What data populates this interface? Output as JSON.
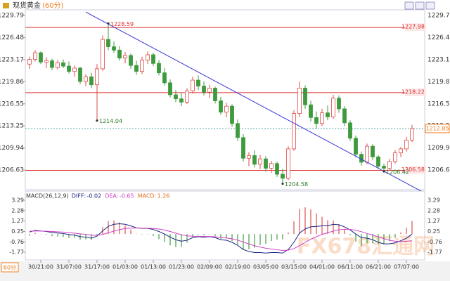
{
  "header": {
    "title": "现货黄金",
    "period": "(60分)"
  },
  "period_button": "60分",
  "watermark": "FX678汇通网",
  "chart_data": [
    {
      "type": "candlestick",
      "categories": [
        null,
        null,
        "30/21:00",
        null,
        null,
        null,
        null,
        "31/07:00",
        null,
        null,
        null,
        null,
        "31/17:00",
        null,
        null,
        null,
        null,
        "01/03:00",
        null,
        null,
        null,
        null,
        "01/13:00",
        null,
        null,
        null,
        null,
        "01/23:00",
        null,
        null,
        null,
        null,
        "02/09:00",
        null,
        null,
        null,
        null,
        "02/19:00",
        null,
        null,
        null,
        null,
        "03/05:00",
        null,
        null,
        null,
        null,
        "03/15:00",
        null,
        null,
        null,
        null,
        "04/01:00",
        null,
        null,
        null,
        null,
        "06/11:00",
        null,
        null,
        null,
        null,
        "06/21:00",
        null,
        null,
        null,
        null,
        "07/07:00",
        null
      ],
      "open": [
        1222.5,
        1223.2,
        1224.2,
        1222.8,
        1223.0,
        1222.0,
        1222.7,
        1222.2,
        1221.4,
        1221.9,
        1219.9,
        1220.6,
        1219.4,
        1221.8,
        1226.2,
        1225.1,
        1224.6,
        1223.4,
        1223.8,
        1222.3,
        1221.4,
        1223.1,
        1223.9,
        1222.6,
        1221.2,
        1219.7,
        1217.9,
        1217.3,
        1216.8,
        1218.5,
        1220.1,
        1219.2,
        1218.3,
        1218.9,
        1217.0,
        1215.3,
        1216.2,
        1213.6,
        1211.5,
        1208.4,
        1208.8,
        1207.5,
        1208.3,
        1206.9,
        1207.6,
        1206.0,
        1205.4,
        1209.8,
        1215.1,
        1218.9,
        1216.4,
        1214.5,
        1213.6,
        1215.2,
        1214.6,
        1217.4,
        1215.8,
        1213.7,
        1211.4,
        1209.0,
        1207.8,
        1210.2,
        1208.6,
        1207.2,
        1206.9,
        1207.9,
        1209.2,
        1209.8,
        1211.1
      ],
      "high": [
        1223.6,
        1224.6,
        1224.4,
        1223.5,
        1223.3,
        1223.1,
        1223.2,
        1222.9,
        1222.3,
        1222.1,
        1221.0,
        1221.2,
        1222.5,
        1226.8,
        1228.59,
        1225.9,
        1225.2,
        1224.3,
        1224.1,
        1223.0,
        1223.6,
        1224.4,
        1224.2,
        1223.1,
        1221.9,
        1220.2,
        1218.6,
        1218.2,
        1218.9,
        1220.6,
        1220.8,
        1219.9,
        1219.4,
        1219.1,
        1217.6,
        1216.7,
        1216.5,
        1214.2,
        1212.0,
        1209.3,
        1209.6,
        1208.9,
        1208.7,
        1208.0,
        1207.9,
        1206.8,
        1210.2,
        1215.6,
        1219.9,
        1219.3,
        1217.0,
        1215.4,
        1215.8,
        1216.3,
        1217.9,
        1217.8,
        1216.2,
        1214.1,
        1211.8,
        1209.4,
        1210.6,
        1210.5,
        1208.9,
        1207.6,
        1208.3,
        1209.6,
        1210.1,
        1211.6,
        1213.4
      ],
      "low": [
        1221.8,
        1222.9,
        1222.5,
        1221.9,
        1221.6,
        1221.7,
        1221.9,
        1221.1,
        1220.6,
        1219.5,
        1219.2,
        1218.9,
        1214.04,
        1221.5,
        1224.6,
        1224.2,
        1223.0,
        1222.6,
        1221.8,
        1220.9,
        1221.0,
        1222.5,
        1222.2,
        1220.8,
        1219.3,
        1217.5,
        1216.8,
        1216.2,
        1216.5,
        1218.1,
        1218.6,
        1217.8,
        1217.4,
        1216.6,
        1214.9,
        1214.5,
        1213.1,
        1211.0,
        1207.9,
        1207.2,
        1207.0,
        1206.8,
        1206.4,
        1206.2,
        1205.6,
        1204.58,
        1205.1,
        1209.5,
        1214.6,
        1215.8,
        1213.9,
        1212.8,
        1213.2,
        1214.1,
        1214.3,
        1215.2,
        1213.2,
        1211.0,
        1208.5,
        1207.3,
        1207.5,
        1208.1,
        1206.8,
        1206.42,
        1206.6,
        1207.6,
        1208.6,
        1209.4,
        1210.8
      ],
      "close": [
        1223.2,
        1224.2,
        1222.8,
        1223.0,
        1222.0,
        1222.7,
        1222.2,
        1221.4,
        1221.9,
        1219.9,
        1220.6,
        1219.4,
        1221.8,
        1226.2,
        1225.1,
        1224.6,
        1223.4,
        1223.8,
        1222.3,
        1221.4,
        1223.1,
        1223.9,
        1222.6,
        1221.2,
        1219.7,
        1217.9,
        1217.3,
        1216.8,
        1218.5,
        1220.1,
        1219.2,
        1218.3,
        1218.9,
        1217.0,
        1215.3,
        1216.2,
        1213.6,
        1211.5,
        1208.4,
        1208.8,
        1207.5,
        1208.3,
        1206.9,
        1207.6,
        1206.0,
        1205.4,
        1209.8,
        1215.1,
        1218.9,
        1216.4,
        1214.5,
        1213.6,
        1215.2,
        1214.6,
        1217.4,
        1215.8,
        1213.7,
        1211.4,
        1209.0,
        1207.8,
        1210.2,
        1208.6,
        1207.2,
        1206.9,
        1207.9,
        1209.2,
        1209.8,
        1211.1,
        1212.85
      ],
      "up_color": "#e04848",
      "down_color": "#3d9a3d",
      "ylim": [
        1230.63,
        1203.9
      ],
      "yticks": [
        1229.79,
        1226.48,
        1223.17,
        1219.86,
        1216.55,
        1213.25,
        1209.94,
        1206.63
      ],
      "hlines": [
        {
          "value": 1227.98,
          "color": "#e03030"
        },
        {
          "value": 1218.22,
          "color": "#e03030"
        },
        {
          "value": 1206.58,
          "color": "#e03030"
        }
      ],
      "last_price": {
        "value": 1212.85,
        "color": "#f08020"
      },
      "trendline": {
        "color": "#3535d8",
        "points": [
          [
            10,
            1230.3
          ],
          [
            70,
            1203.3
          ]
        ]
      },
      "annotations": [
        {
          "x": 14,
          "value": 1228.59
        },
        {
          "x": 12,
          "value": 1214.04
        },
        {
          "x": 45,
          "value": 1204.58
        },
        {
          "x": 63,
          "value": 1206.42
        }
      ]
    },
    {
      "type": "macd",
      "title": "MACD(26,12,9)",
      "series": [
        {
          "name": "DIFF",
          "color": "#1a237e",
          "values": [
            0.2,
            0.35,
            0.3,
            0.25,
            0.15,
            0.1,
            0.05,
            -0.05,
            -0.1,
            -0.25,
            -0.3,
            -0.4,
            -0.2,
            0.3,
            0.75,
            0.95,
            1.0,
            0.95,
            0.8,
            0.6,
            0.55,
            0.55,
            0.45,
            0.25,
            0.0,
            -0.3,
            -0.55,
            -0.7,
            -0.6,
            -0.35,
            -0.25,
            -0.3,
            -0.25,
            -0.35,
            -0.55,
            -0.6,
            -0.8,
            -1.1,
            -1.5,
            -1.7,
            -1.8,
            -1.8,
            -1.85,
            -1.8,
            -1.8,
            -1.85,
            -1.5,
            -0.8,
            0.1,
            0.5,
            0.7,
            0.75,
            0.8,
            0.8,
            0.95,
            0.9,
            0.7,
            0.4,
            0.0,
            -0.35,
            -0.4,
            -0.55,
            -0.8,
            -0.95,
            -0.95,
            -0.85,
            -0.65,
            -0.4,
            -0.02
          ]
        },
        {
          "name": "DEA",
          "color": "#d040c8",
          "values": [
            0.28,
            0.29,
            0.29,
            0.28,
            0.25,
            0.22,
            0.19,
            0.14,
            0.09,
            0.02,
            -0.04,
            -0.11,
            -0.13,
            -0.04,
            0.12,
            0.29,
            0.43,
            0.53,
            0.58,
            0.58,
            0.57,
            0.57,
            0.55,
            0.49,
            0.39,
            0.25,
            0.09,
            -0.07,
            -0.18,
            -0.21,
            -0.22,
            -0.24,
            -0.24,
            -0.26,
            -0.32,
            -0.38,
            -0.46,
            -0.59,
            -0.77,
            -0.96,
            -1.13,
            -1.26,
            -1.38,
            -1.46,
            -1.53,
            -1.59,
            -1.57,
            -1.42,
            -1.12,
            -0.8,
            -0.5,
            -0.25,
            -0.04,
            0.13,
            0.29,
            0.41,
            0.47,
            0.46,
            0.37,
            0.23,
            0.05,
            -0.1,
            -0.28,
            -0.45,
            -0.6,
            -0.7,
            -0.73,
            -0.71,
            -0.65
          ]
        },
        {
          "name": "MACD",
          "color": "#e07020",
          "up_color": "#e05050",
          "down_color": "#40a040",
          "values": [
            -0.16,
            0.12,
            0.02,
            -0.06,
            -0.2,
            -0.24,
            -0.28,
            -0.38,
            -0.38,
            -0.54,
            -0.52,
            -0.58,
            -0.14,
            0.68,
            1.26,
            1.32,
            1.14,
            0.84,
            0.44,
            0.04,
            -0.04,
            -0.04,
            -0.2,
            -0.48,
            -0.78,
            -1.1,
            -1.28,
            -1.26,
            -0.84,
            -0.28,
            -0.06,
            -0.12,
            -0.02,
            -0.18,
            -0.46,
            -0.44,
            -0.68,
            -1.02,
            -1.46,
            -1.48,
            -1.34,
            -1.08,
            -0.94,
            -0.68,
            -0.54,
            -0.52,
            0.14,
            1.24,
            2.44,
            2.6,
            2.4,
            2.0,
            1.68,
            1.34,
            1.32,
            0.98,
            0.46,
            -0.12,
            -0.74,
            -1.16,
            -0.9,
            -0.9,
            -1.04,
            -1.0,
            -0.7,
            -0.3,
            0.16,
            0.62,
            1.26
          ]
        }
      ],
      "ylim": [
        3.77,
        -2.38
      ],
      "yticks": [
        3.29,
        2.28,
        1.27,
        0.25,
        -0.76,
        -1.77
      ]
    }
  ]
}
